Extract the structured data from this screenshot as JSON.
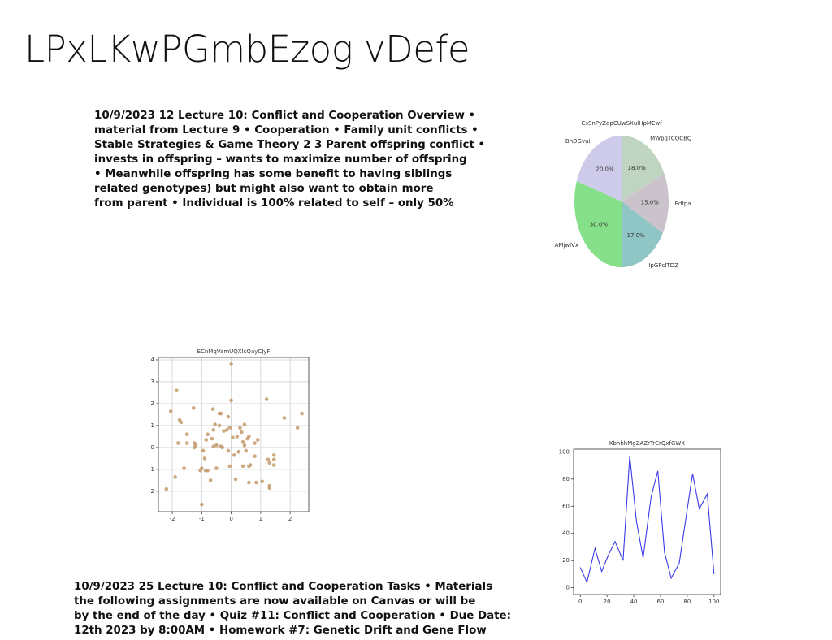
{
  "title": "LPxLKwPGmbEzog vDefe",
  "paragraphs": [
    {
      "lines": [
        "10/9/2023 12 Lecture 10: Conflict and Cooperation Overview •",
        "material from Lecture 9 • Cooperation • Family unit conflicts •",
        "Stable Strategies & Game Theory 2 3 Parent offspring conflict •",
        "invests in offspring – wants to maximize number of offspring",
        "• Meanwhile offspring has some benefit to having siblings",
        "related genotypes) but might also want to obtain more",
        "from parent • Individual is 100% related to self – only 50%"
      ]
    },
    {
      "lines": [
        "10/9/2023 25 Lecture 10: Conflict and Cooperation Tasks • Materials",
        "the following assignments are now available on Canvas or will be",
        "by the end of the day • Quiz #11: Conflict and Cooperation • Due Date:",
        "12th 2023 by 8:00AM • Homework #7: Genetic Drift and Gene Flow"
      ]
    }
  ],
  "chart_data": [
    {
      "type": "pie",
      "title": "CsSnPyZdpCUwSXulHpMEwf",
      "categories": [
        "MWpgTCQCBQ",
        "Edfpa",
        "IpGPcITDZ",
        "AMjwlVx",
        "BhDGvui"
      ],
      "values": [
        18,
        15,
        17,
        30,
        20
      ],
      "value_labels": [
        "18.0%",
        "15.0%",
        "17.0%",
        "30.0%",
        "20.0%"
      ],
      "colors": [
        "#bfd5c1",
        "#cbc3cc",
        "#8fc5c4",
        "#86e08a",
        "#cdcbe9"
      ]
    },
    {
      "type": "scatter",
      "title": "ECnMqVamUQXlcQayCJyF",
      "color": "#c49a6c",
      "grid": true,
      "x": [
        0,
        -1.85,
        -2.05,
        -1.7,
        -1.75,
        -1.28,
        -0.62,
        -0.35,
        -0.4,
        0,
        1.2,
        1.8,
        2.4,
        2.25,
        -1.5,
        -1.8,
        -1.5,
        -1.25,
        -1.2,
        -1.25,
        -0.95,
        -0.85,
        -0.8,
        -0.6,
        -0.55,
        -0.25,
        -0.15,
        -0.05,
        0.05,
        0.2,
        0.35,
        0.45,
        0.55,
        0.6,
        0.8,
        0.9,
        0.4,
        0.45,
        -0.6,
        -0.5,
        -0.35,
        -0.3,
        -0.1,
        0.1,
        0.25,
        0.5,
        0.8,
        -0.9,
        -1,
        -1.05,
        -0.87,
        -0.8,
        -1.6,
        -1.9,
        -0.7,
        -0.5,
        -0.05,
        0.4,
        0.6,
        0.65,
        0.15,
        0.6,
        0.85,
        1.05,
        1.3,
        1.3,
        1.25,
        1.3,
        1.45,
        1.45,
        1.45,
        -2.2,
        -1,
        -0.1,
        -0.4,
        0.3,
        -0.65
      ],
      "values": [
        3.8,
        2.6,
        1.65,
        1.15,
        1.25,
        1.8,
        1.75,
        1.55,
        1.55,
        2.15,
        2.2,
        1.35,
        1.55,
        0.9,
        0.6,
        0.2,
        0.2,
        0.2,
        0.1,
        0,
        -0.15,
        0.35,
        0.6,
        0.8,
        1.05,
        0.75,
        0.8,
        0.9,
        0.45,
        0.5,
        0.7,
        1.05,
        0.4,
        0.5,
        0.2,
        0.35,
        0.25,
        0.1,
        0.05,
        0.1,
        0.05,
        0,
        -0.15,
        -0.35,
        -0.2,
        -0.15,
        -0.4,
        -0.5,
        -0.95,
        -1.05,
        -1.05,
        -1.05,
        -0.95,
        -1.35,
        -1.5,
        -0.95,
        -0.85,
        -0.85,
        -0.85,
        -0.8,
        -1.45,
        -1.6,
        -1.6,
        -1.55,
        -1.75,
        -1.85,
        -0.55,
        -0.7,
        -0.35,
        -0.55,
        -0.8,
        -1.9,
        -2.6,
        1.4,
        1,
        0.9,
        0.4
      ],
      "xlim": [
        -2.47,
        2.63
      ],
      "ylim": [
        -2.93,
        4.11
      ],
      "xticks": [
        -2,
        -1,
        0,
        1,
        2
      ],
      "yticks": [
        -2,
        -1,
        0,
        1,
        2,
        3,
        4
      ]
    },
    {
      "type": "line",
      "title": "KbhhhMgZAZrTrCrQxfGWX",
      "color": "#3a3ae8",
      "x": [
        0,
        5,
        11,
        16,
        21,
        26,
        32,
        37,
        42,
        47,
        53,
        58,
        63,
        68,
        74,
        79,
        84,
        89,
        95,
        100
      ],
      "values": [
        15,
        4,
        29,
        12,
        24,
        34,
        20,
        97,
        49,
        22,
        67,
        86,
        26,
        7,
        18,
        51,
        84,
        58,
        69,
        10
      ],
      "xlim": [
        -5,
        105
      ],
      "ylim": [
        -5,
        102
      ],
      "xticks": [
        0,
        20,
        40,
        60,
        80,
        100
      ],
      "yticks": [
        0,
        20,
        40,
        60,
        80,
        100
      ]
    }
  ]
}
